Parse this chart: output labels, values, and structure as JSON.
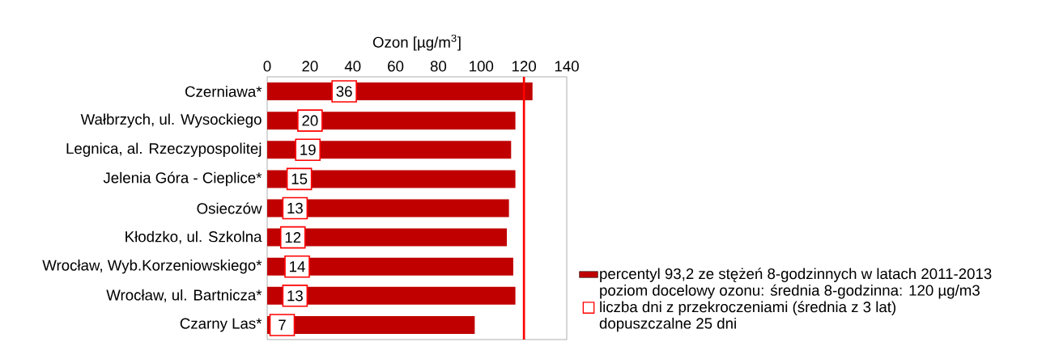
{
  "chart_data": {
    "type": "bar",
    "orientation": "horizontal",
    "xlabel": "Ozon [µg/m$^{3}$]",
    "categories": [
      "Czerniawa*",
      "Wałbrzych, ul. Wysockiego",
      "Legnica, al. Rzeczypospolitej",
      "Jelenia Góra - Cieplice*",
      "Osieczów",
      "Kłodzko, ul. Szkolna",
      "Wrocław, Wyb.Korzeniowskiego*",
      "Wrocław, ul. Bartnicza*",
      "Czarny Las*"
    ],
    "series": [
      {
        "name": "percentyl 93,2 ze stężeń 8-godzinnych w latach 2011-2013",
        "color": "#c00000",
        "values": [
          124,
          116,
          114,
          116,
          113,
          112,
          115,
          116,
          97
        ]
      },
      {
        "name": "liczba dni z przekroczeniami (średnia z 3 lat)",
        "type": "scatter",
        "marker": "square",
        "color": "#ff0000",
        "data_labels": true,
        "values": [
          36,
          20,
          19,
          15,
          13,
          12,
          14,
          13,
          7
        ]
      }
    ],
    "xlim": [
      0,
      140
    ],
    "xticks": [
      0,
      20,
      40,
      60,
      80,
      100,
      120,
      140
    ],
    "ref_lines": [
      {
        "axis": "x",
        "value": 120,
        "color": "#ff0000"
      }
    ],
    "annotations": [
      "poziom docelowy ozonu: średnia 8-godzinna: 120 µg/m3",
      "dopuszczalne 25 dni"
    ],
    "legend": "right",
    "grid": false
  }
}
